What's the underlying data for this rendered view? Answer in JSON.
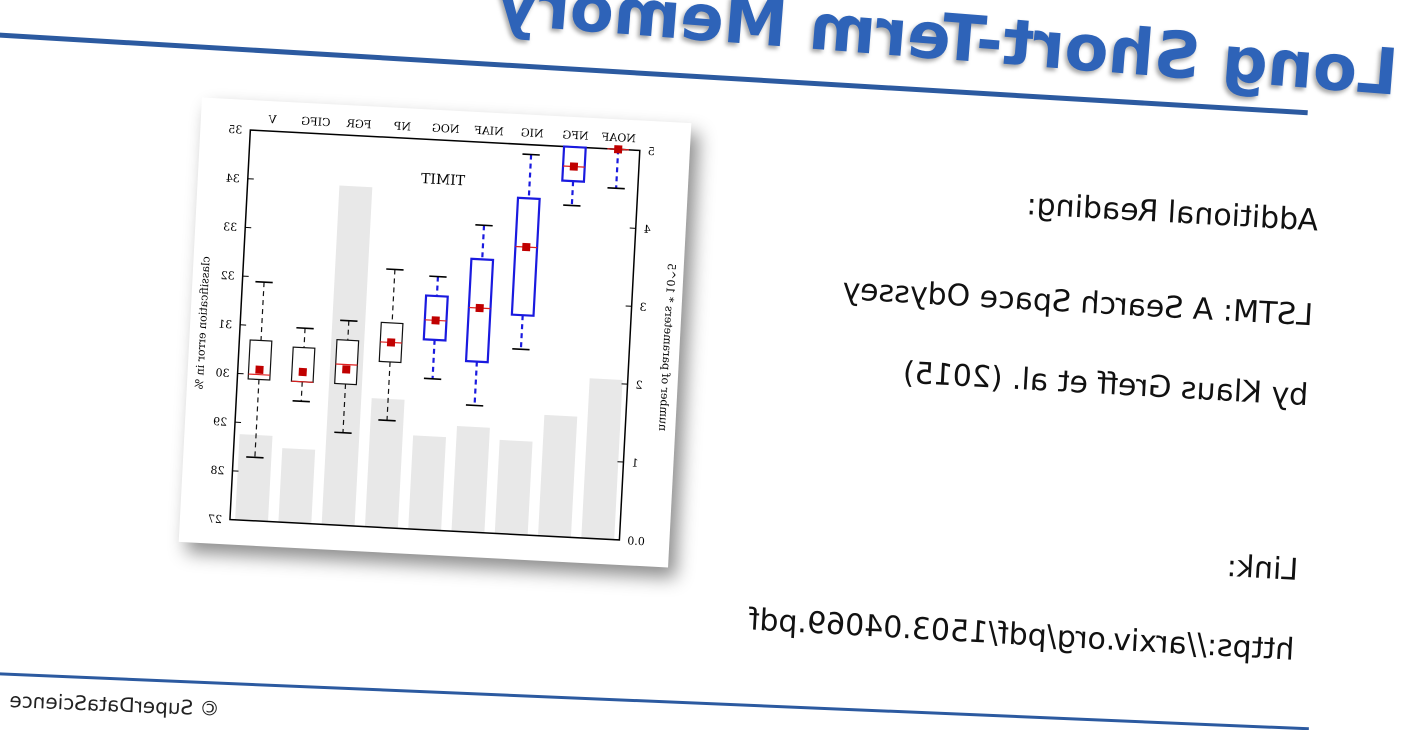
{
  "slide": {
    "title": "Long Short-Term Memory",
    "additional_reading_label": "Additional Reading:",
    "paper_title": "LSTM: A Search Space Odyssey",
    "paper_authors": "by Klaus Greff et al. (2015)",
    "link_label": "Link:",
    "link_url": "https://arxiv.org/pdf/1503.04069.pdf",
    "footer": "© SuperDataScience"
  },
  "colors": {
    "accent": "#2e63b8",
    "rule": "#2c5aa0",
    "box_blue": "#1a1adf",
    "box_black": "#111111",
    "median": "#e02020",
    "mean": "#c00000",
    "bar": "#e8e8e8"
  },
  "chart_data": {
    "type": "box",
    "title": "TIMIT",
    "categories": [
      "NOAF",
      "NFG",
      "NIG",
      "NIAF",
      "NOG",
      "NP",
      "FGR",
      "CIFG",
      "V"
    ],
    "left_ylabel": "number of parameters * 10^5",
    "right_ylabel": "classification error in %",
    "left_ylim": [
      0,
      5
    ],
    "right_ylim": [
      27,
      35
    ],
    "left_ticks": [
      "0.0",
      "1",
      "2",
      "3",
      "4",
      "5"
    ],
    "right_ticks": [
      "27",
      "28",
      "29",
      "30",
      "31",
      "32",
      "33",
      "34",
      "35"
    ],
    "bars": [
      2.05,
      1.55,
      1.2,
      1.35,
      1.2,
      1.65,
      4.35,
      0.95,
      1.1
    ],
    "boxes": [
      {
        "name": "NOAF",
        "color": "blue",
        "whisker_low": 34.2,
        "q1": 35,
        "median": 35,
        "q3": 35,
        "whisker_high": 35,
        "mean": 35
      },
      {
        "name": "NFG",
        "color": "blue",
        "whisker_low": 33.8,
        "q1": 34.3,
        "median": 34.6,
        "q3": 35,
        "whisker_high": 35,
        "mean": 34.6
      },
      {
        "name": "NIG",
        "color": "blue",
        "whisker_low": 30.8,
        "q1": 31.5,
        "median": 32.9,
        "q3": 33.9,
        "whisker_high": 34.8,
        "mean": 32.9
      },
      {
        "name": "NIAF",
        "color": "blue",
        "whisker_low": 29.6,
        "q1": 30.5,
        "median": 31.6,
        "q3": 32.6,
        "whisker_high": 33.3,
        "mean": 31.6
      },
      {
        "name": "NOG",
        "color": "blue",
        "whisker_low": 30.1,
        "q1": 30.9,
        "median": 31.3,
        "q3": 31.8,
        "whisker_high": 32.2,
        "mean": 31.3
      },
      {
        "name": "NP",
        "color": "black",
        "whisker_low": 29.2,
        "q1": 30.4,
        "median": 30.8,
        "q3": 31.2,
        "whisker_high": 32.3,
        "mean": 30.8
      },
      {
        "name": "FGR",
        "color": "black",
        "whisker_low": 28.9,
        "q1": 29.9,
        "median": 30.3,
        "q3": 30.8,
        "whisker_high": 31.2,
        "mean": 30.2
      },
      {
        "name": "CIFG",
        "color": "black",
        "whisker_low": 29.5,
        "q1": 29.9,
        "median": 29.9,
        "q3": 30.6,
        "whisker_high": 31.0,
        "mean": 30.1
      },
      {
        "name": "V",
        "color": "black",
        "whisker_low": 28.3,
        "q1": 29.9,
        "median": 30.0,
        "q3": 30.7,
        "whisker_high": 31.9,
        "mean": 30.1
      }
    ]
  }
}
